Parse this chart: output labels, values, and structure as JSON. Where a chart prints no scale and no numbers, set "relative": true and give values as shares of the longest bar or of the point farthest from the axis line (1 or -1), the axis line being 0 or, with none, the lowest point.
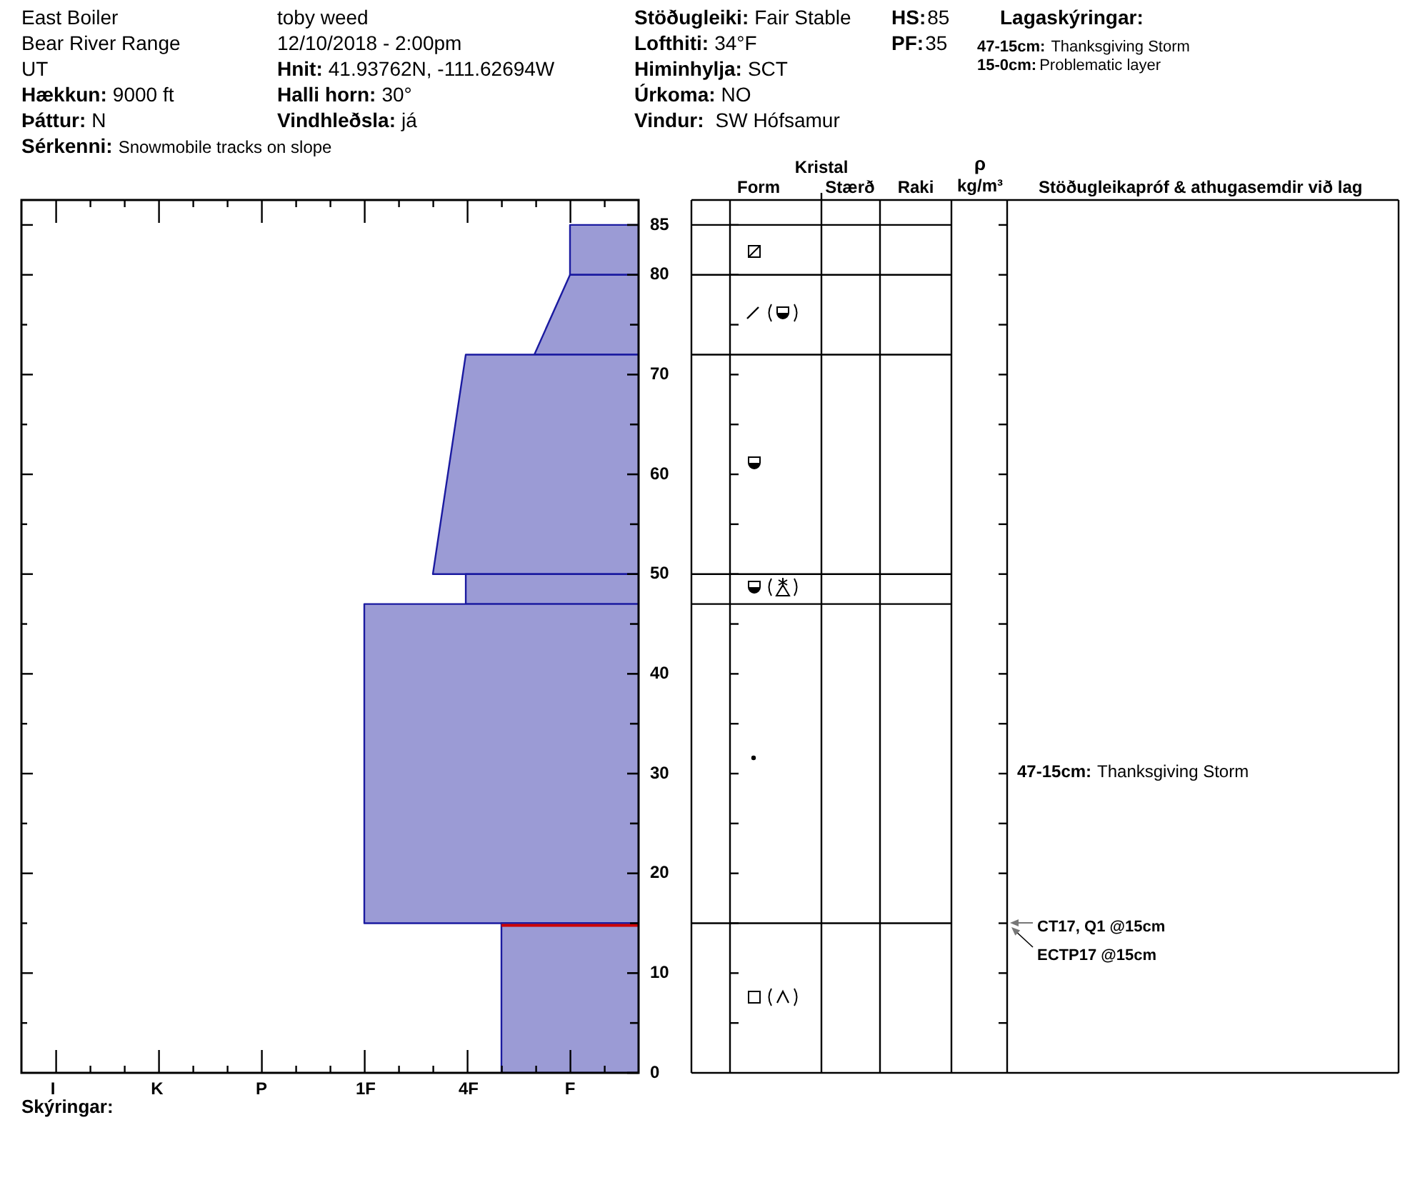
{
  "chart_data": {
    "type": "area",
    "orientation": "horizontal",
    "relative": true,
    "series": [
      {
        "color": "#9b9bd5",
        "x": [
          0,
          0,
          15,
          15
        ],
        "values": [
          0,
          -0.5,
          -0.5,
          0
        ]
      },
      {
        "color": "#9b9bd5",
        "x": [
          15,
          15,
          47,
          47
        ],
        "values": [
          0,
          -1,
          -1,
          0
        ]
      },
      {
        "color": "#9b9bd5",
        "x": [
          47,
          47,
          50,
          50
        ],
        "values": [
          0,
          -0.63,
          -0.63,
          0
        ]
      },
      {
        "color": "#9b9bd5",
        "x": [
          50,
          50,
          72,
          72
        ],
        "values": [
          0,
          -0.75,
          -0.63,
          0
        ]
      },
      {
        "color": "#9b9bd5",
        "x": [
          72,
          72,
          80,
          80
        ],
        "values": [
          0,
          -0.38,
          -0.25,
          0
        ]
      },
      {
        "color": "#9b9bd5",
        "x": [
          80,
          80,
          85,
          85
        ],
        "values": [
          0,
          -0.25,
          -0.25,
          0
        ]
      },
      {
        "type": "line",
        "color": "#cc0000",
        "x": [
          15,
          15
        ],
        "values": [
          -0.5,
          0
        ]
      }
    ],
    "ylim": [
      0,
      87.5
    ],
    "yticks": [
      0,
      {
        "value": 5,
        "label": null
      },
      10,
      {
        "value": 15,
        "label": null
      },
      20,
      {
        "value": 25,
        "label": null
      },
      30,
      {
        "value": 35,
        "label": null
      },
      40,
      {
        "value": 45,
        "label": null
      },
      50,
      {
        "value": 55,
        "label": null
      },
      60,
      {
        "value": 65,
        "label": null
      },
      70,
      {
        "value": 75,
        "label": null
      },
      80,
      85
    ],
    "annotations": [
      "East Boiler",
      "Bear River Range",
      "UT",
      "Hækkun:",
      "9000 ft",
      "Þáttur:",
      "N",
      "Sérkenni:",
      "Snowmobile tracks on slope",
      "toby weed",
      "12/10/2018 - 2:00pm",
      "Hnit:",
      "41.93762N, -111.62694W",
      "Halli horn:",
      "30°",
      "Vindhleðsla:",
      "já",
      "Stöðugleiki:",
      "Fair Stable",
      "Lofthiti:",
      "34°F",
      "Himinhylja:",
      "SCT",
      "Úrkoma:",
      "NO",
      "Vindur:",
      "SW Hófsamur",
      "HS:",
      "85",
      "PF:",
      "35",
      "Lagaskýringar:",
      "47-15cm:",
      "Thanksgiving Storm",
      "15-0cm:",
      "Problematic layer",
      "Kristal",
      "Form",
      "Stærð",
      "Raki",
      "ρ",
      "kg/m³",
      "Stöðugleikapróf & athugasemdir við lag",
      "47-15cm:",
      "Thanksgiving Storm",
      "CT17, Q1 @15cm",
      "ECTP17 @15cm",
      "I",
      "K",
      "P",
      "1F",
      "4F",
      "F",
      "Skýringar:"
    ]
  }
}
